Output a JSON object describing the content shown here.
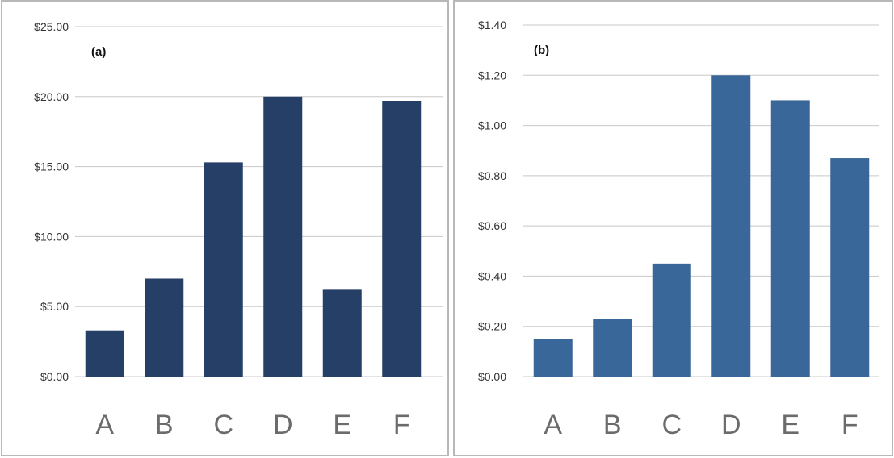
{
  "chart_data": [
    {
      "type": "bar",
      "title": "(a)",
      "categories": [
        "A",
        "B",
        "C",
        "D",
        "E",
        "F"
      ],
      "values": [
        3.3,
        7.0,
        15.3,
        20.0,
        6.2,
        19.7
      ],
      "ylim": [
        0,
        25
      ],
      "yticks": [
        "$0.00",
        "$5.00",
        "$10.00",
        "$15.00",
        "$20.00",
        "$25.00"
      ],
      "yticks_values": [
        0,
        5,
        10,
        15,
        20,
        25
      ],
      "grid": true,
      "bar_color": "#253f66"
    },
    {
      "type": "bar",
      "title": "(b)",
      "categories": [
        "A",
        "B",
        "C",
        "D",
        "E",
        "F"
      ],
      "values": [
        0.15,
        0.23,
        0.45,
        1.2,
        1.1,
        0.87
      ],
      "ylim": [
        0,
        1.4
      ],
      "yticks": [
        "$0.00",
        "$0.20",
        "$0.40",
        "$0.60",
        "$0.80",
        "$1.00",
        "$1.20",
        "$1.40"
      ],
      "yticks_values": [
        0,
        0.2,
        0.4,
        0.6,
        0.8,
        1.0,
        1.2,
        1.4
      ],
      "grid": true,
      "bar_color": "#3a6799"
    }
  ]
}
